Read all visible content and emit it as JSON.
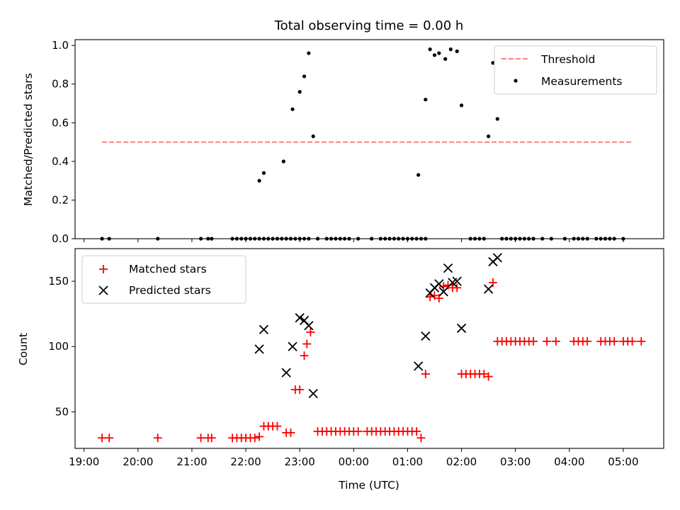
{
  "chart_data": [
    {
      "type": "scatter",
      "title": "Total observing time = 0.00 h",
      "xlabel": "",
      "ylabel": "Matched/Predicted stars",
      "xlim": [
        "18:50",
        "05:45"
      ],
      "ylim": [
        0,
        1.03
      ],
      "yticks": [
        "0.0",
        "0.2",
        "0.4",
        "0.6",
        "0.8",
        "1.0"
      ],
      "xticks": [
        "19:00",
        "20:00",
        "21:00",
        "22:00",
        "23:00",
        "00:00",
        "01:00",
        "02:00",
        "03:00",
        "04:00",
        "05:00"
      ],
      "legend": {
        "position": "top-right",
        "entries": [
          {
            "label": "Threshold",
            "marker": "dashed-line",
            "color": "#ff8080"
          },
          {
            "label": "Measurements",
            "marker": "dot",
            "color": "#000000"
          }
        ]
      },
      "threshold": {
        "name": "Threshold",
        "value": 0.5,
        "x": [
          "19:20",
          "05:10"
        ],
        "color": "#ff7f7f"
      },
      "series": [
        {
          "name": "Measurements",
          "color": "#000000",
          "points": [
            [
              "19:20",
              0
            ],
            [
              "19:28",
              0
            ],
            [
              "20:22",
              0
            ],
            [
              "21:10",
              0
            ],
            [
              "21:18",
              0
            ],
            [
              "21:22",
              0
            ],
            [
              "21:45",
              0
            ],
            [
              "21:50",
              0
            ],
            [
              "21:55",
              0
            ],
            [
              "22:00",
              0
            ],
            [
              "22:05",
              0
            ],
            [
              "22:10",
              0
            ],
            [
              "22:15",
              0
            ],
            [
              "22:20",
              0
            ],
            [
              "22:25",
              0
            ],
            [
              "22:30",
              0
            ],
            [
              "22:35",
              0
            ],
            [
              "22:40",
              0
            ],
            [
              "22:45",
              0
            ],
            [
              "22:50",
              0
            ],
            [
              "22:55",
              0
            ],
            [
              "23:00",
              0
            ],
            [
              "23:05",
              0
            ],
            [
              "23:10",
              0
            ],
            [
              "23:20",
              0
            ],
            [
              "23:30",
              0
            ],
            [
              "23:35",
              0
            ],
            [
              "23:40",
              0
            ],
            [
              "23:45",
              0
            ],
            [
              "23:50",
              0
            ],
            [
              "23:55",
              0
            ],
            [
              "00:05",
              0
            ],
            [
              "00:20",
              0
            ],
            [
              "00:30",
              0
            ],
            [
              "00:35",
              0
            ],
            [
              "00:40",
              0
            ],
            [
              "00:45",
              0
            ],
            [
              "00:50",
              0
            ],
            [
              "00:55",
              0
            ],
            [
              "01:00",
              0
            ],
            [
              "01:05",
              0
            ],
            [
              "01:10",
              0
            ],
            [
              "01:15",
              0
            ],
            [
              "01:20",
              0
            ],
            [
              "02:10",
              0
            ],
            [
              "02:15",
              0
            ],
            [
              "02:20",
              0
            ],
            [
              "02:25",
              0
            ],
            [
              "02:45",
              0
            ],
            [
              "02:50",
              0
            ],
            [
              "02:55",
              0
            ],
            [
              "03:00",
              0
            ],
            [
              "03:05",
              0
            ],
            [
              "03:10",
              0
            ],
            [
              "03:15",
              0
            ],
            [
              "03:20",
              0
            ],
            [
              "03:30",
              0
            ],
            [
              "03:40",
              0
            ],
            [
              "03:55",
              0
            ],
            [
              "04:05",
              0
            ],
            [
              "04:10",
              0
            ],
            [
              "04:15",
              0
            ],
            [
              "04:20",
              0
            ],
            [
              "04:30",
              0
            ],
            [
              "04:35",
              0
            ],
            [
              "04:40",
              0
            ],
            [
              "04:45",
              0
            ],
            [
              "04:50",
              0
            ],
            [
              "05:00",
              0
            ],
            [
              "22:15",
              0.3
            ],
            [
              "22:20",
              0.34
            ],
            [
              "22:42",
              0.4
            ],
            [
              "22:52",
              0.67
            ],
            [
              "23:00",
              0.76
            ],
            [
              "23:05",
              0.84
            ],
            [
              "23:10",
              0.96
            ],
            [
              "23:15",
              0.53
            ],
            [
              "01:12",
              0.33
            ],
            [
              "01:20",
              0.72
            ],
            [
              "01:25",
              0.98
            ],
            [
              "01:30",
              0.95
            ],
            [
              "01:35",
              0.96
            ],
            [
              "01:42",
              0.93
            ],
            [
              "01:48",
              0.98
            ],
            [
              "01:55",
              0.97
            ],
            [
              "02:00",
              0.69
            ],
            [
              "02:30",
              0.53
            ],
            [
              "02:35",
              0.91
            ],
            [
              "02:40",
              0.62
            ]
          ]
        }
      ]
    },
    {
      "type": "scatter",
      "title": "",
      "xlabel": "Time (UTC)",
      "ylabel": "Count",
      "xlim": [
        "18:50",
        "05:45"
      ],
      "ylim": [
        22,
        175
      ],
      "yticks": [
        "50",
        "100",
        "150"
      ],
      "xticks": [
        "19:00",
        "20:00",
        "21:00",
        "22:00",
        "23:00",
        "00:00",
        "01:00",
        "02:00",
        "03:00",
        "04:00",
        "05:00"
      ],
      "legend": {
        "position": "top-left",
        "entries": [
          {
            "label": "Matched stars",
            "marker": "plus",
            "color": "#ff0000"
          },
          {
            "label": "Predicted stars",
            "marker": "x",
            "color": "#000000"
          }
        ]
      },
      "series": [
        {
          "name": "Matched stars",
          "marker": "plus",
          "color": "#ff0000",
          "points": [
            [
              "19:20",
              30
            ],
            [
              "19:28",
              30
            ],
            [
              "20:22",
              30
            ],
            [
              "21:10",
              30
            ],
            [
              "21:18",
              30
            ],
            [
              "21:22",
              30
            ],
            [
              "21:45",
              30
            ],
            [
              "21:50",
              30
            ],
            [
              "21:55",
              30
            ],
            [
              "22:00",
              30
            ],
            [
              "22:05",
              30
            ],
            [
              "22:10",
              30
            ],
            [
              "22:15",
              31
            ],
            [
              "22:20",
              39
            ],
            [
              "22:25",
              39
            ],
            [
              "22:30",
              39
            ],
            [
              "22:35",
              39
            ],
            [
              "22:45",
              34
            ],
            [
              "22:50",
              34
            ],
            [
              "22:55",
              67
            ],
            [
              "23:00",
              67
            ],
            [
              "23:05",
              93
            ],
            [
              "23:08",
              102
            ],
            [
              "23:12",
              111
            ],
            [
              "23:20",
              35
            ],
            [
              "23:25",
              35
            ],
            [
              "23:30",
              35
            ],
            [
              "23:35",
              35
            ],
            [
              "23:40",
              35
            ],
            [
              "23:45",
              35
            ],
            [
              "23:50",
              35
            ],
            [
              "23:55",
              35
            ],
            [
              "00:00",
              35
            ],
            [
              "00:05",
              35
            ],
            [
              "00:15",
              35
            ],
            [
              "00:20",
              35
            ],
            [
              "00:25",
              35
            ],
            [
              "00:30",
              35
            ],
            [
              "00:35",
              35
            ],
            [
              "00:40",
              35
            ],
            [
              "00:45",
              35
            ],
            [
              "00:50",
              35
            ],
            [
              "00:55",
              35
            ],
            [
              "01:00",
              35
            ],
            [
              "01:05",
              35
            ],
            [
              "01:10",
              35
            ],
            [
              "01:15",
              30
            ],
            [
              "01:20",
              79
            ],
            [
              "01:25",
              138
            ],
            [
              "01:30",
              139
            ],
            [
              "01:35",
              137
            ],
            [
              "01:40",
              146
            ],
            [
              "01:45",
              147
            ],
            [
              "01:50",
              145
            ],
            [
              "01:55",
              145
            ],
            [
              "02:00",
              79
            ],
            [
              "02:05",
              79
            ],
            [
              "02:10",
              79
            ],
            [
              "02:15",
              79
            ],
            [
              "02:20",
              79
            ],
            [
              "02:25",
              79
            ],
            [
              "02:30",
              77
            ],
            [
              "02:35",
              149
            ],
            [
              "02:40",
              104
            ],
            [
              "02:45",
              104
            ],
            [
              "02:50",
              104
            ],
            [
              "02:55",
              104
            ],
            [
              "03:00",
              104
            ],
            [
              "03:05",
              104
            ],
            [
              "03:10",
              104
            ],
            [
              "03:15",
              104
            ],
            [
              "03:20",
              104
            ],
            [
              "03:35",
              104
            ],
            [
              "03:45",
              104
            ],
            [
              "04:05",
              104
            ],
            [
              "04:10",
              104
            ],
            [
              "04:15",
              104
            ],
            [
              "04:20",
              104
            ],
            [
              "04:35",
              104
            ],
            [
              "04:40",
              104
            ],
            [
              "04:45",
              104
            ],
            [
              "04:50",
              104
            ],
            [
              "05:00",
              104
            ],
            [
              "05:05",
              104
            ],
            [
              "05:10",
              104
            ],
            [
              "05:20",
              104
            ]
          ]
        },
        {
          "name": "Predicted stars",
          "marker": "x",
          "color": "#000000",
          "points": [
            [
              "22:15",
              98
            ],
            [
              "22:20",
              113
            ],
            [
              "22:45",
              80
            ],
            [
              "22:52",
              100
            ],
            [
              "23:00",
              122
            ],
            [
              "23:05",
              120
            ],
            [
              "23:10",
              116
            ],
            [
              "23:15",
              64
            ],
            [
              "01:12",
              85
            ],
            [
              "01:20",
              108
            ],
            [
              "01:25",
              141
            ],
            [
              "01:30",
              145
            ],
            [
              "01:35",
              148
            ],
            [
              "01:40",
              142
            ],
            [
              "01:45",
              160
            ],
            [
              "01:50",
              149
            ],
            [
              "01:55",
              150
            ],
            [
              "02:00",
              114
            ],
            [
              "02:30",
              144
            ],
            [
              "02:35",
              165
            ],
            [
              "02:40",
              168
            ]
          ]
        }
      ]
    }
  ]
}
